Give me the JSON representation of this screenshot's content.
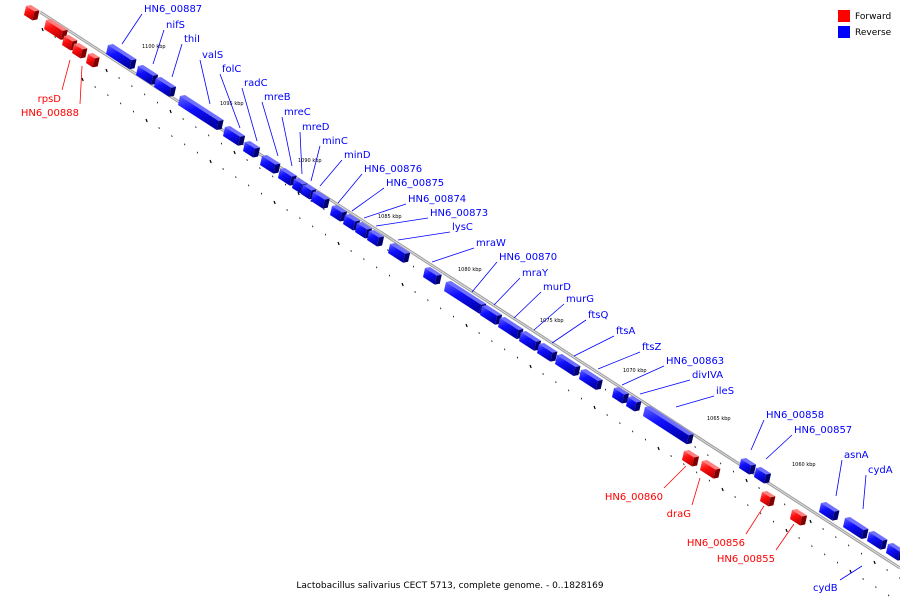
{
  "colors": {
    "forward": "#ff0000",
    "reverse": "#0000ff",
    "backbone": "#808080",
    "tick": "#000000"
  },
  "legend": {
    "forward": "Forward",
    "reverse": "Reverse"
  },
  "caption": "Lactobacillus salivarius CECT 5713, complete genome. - 0..1828169",
  "scale_labels": [
    "1100 kbp",
    "1095 kbp",
    "1090 kbp",
    "1085 kbp",
    "1080 kbp",
    "1075 kbp",
    "1070 kbp",
    "1065 kbp",
    "1060 kbp"
  ],
  "genes_reverse": [
    "HN6_00887",
    "nifS",
    "thiI",
    "valS",
    "folC",
    "radC",
    "mreB",
    "mreC",
    "mreD",
    "minC",
    "minD",
    "HN6_00876",
    "HN6_00875",
    "HN6_00874",
    "HN6_00873",
    "lysC",
    "mraW",
    "HN6_00870",
    "mraY",
    "murD",
    "murG",
    "ftsQ",
    "ftsA",
    "ftsZ",
    "HN6_00863",
    "divIVA",
    "ileS",
    "HN6_00858",
    "HN6_00857",
    "asnA",
    "cydA",
    "cydB"
  ],
  "genes_forward": [
    "rpsD",
    "HN6_00888",
    "HN6_00860",
    "draG",
    "HN6_00856",
    "HN6_00855"
  ]
}
